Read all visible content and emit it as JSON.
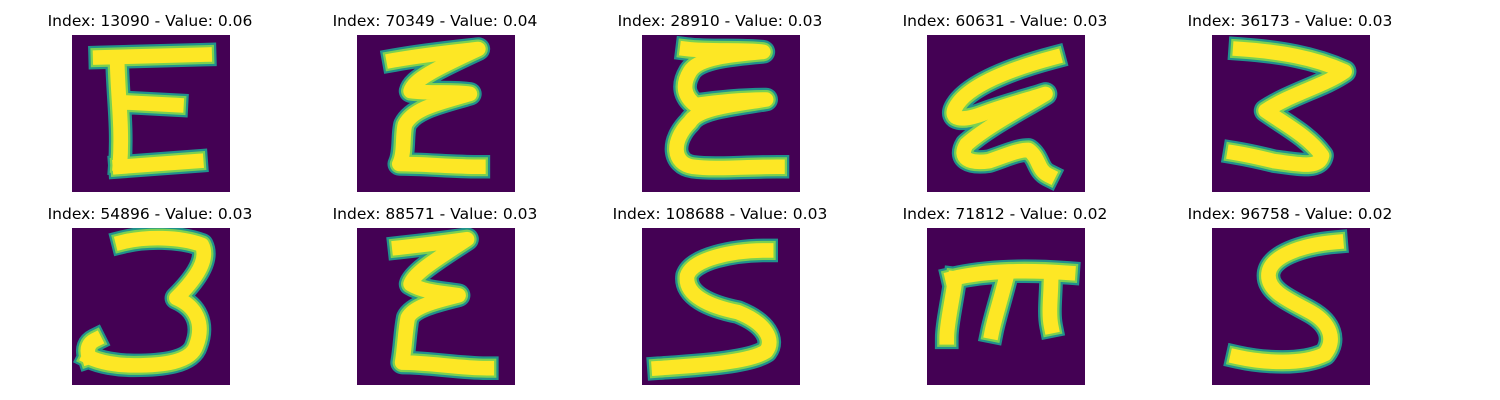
{
  "colors": {
    "background": "#440154",
    "stroke_outer": "#21918c",
    "stroke_mid": "#7ad151",
    "stroke_core": "#fde725"
  },
  "panels": [
    {
      "title": "Index: 13090 - Value: 0.06",
      "glyph": "E-shape"
    },
    {
      "title": "Index: 70349 - Value: 0.04",
      "glyph": "E-shape"
    },
    {
      "title": "Index: 28910 - Value: 0.03",
      "glyph": "E-shape"
    },
    {
      "title": "Index: 60631 - Value: 0.03",
      "glyph": "E-shape"
    },
    {
      "title": "Index: 36173 - Value: 0.03",
      "glyph": "3-shape"
    },
    {
      "title": "Index: 54896 - Value: 0.03",
      "glyph": "3-shape"
    },
    {
      "title": "Index: 88571 - Value: 0.03",
      "glyph": "E-shape"
    },
    {
      "title": "Index: 108688 - Value: 0.03",
      "glyph": "S-shape"
    },
    {
      "title": "Index: 71812 - Value: 0.02",
      "glyph": "m-shape"
    },
    {
      "title": "Index: 96758 - Value: 0.02",
      "glyph": "S-shape"
    }
  ]
}
